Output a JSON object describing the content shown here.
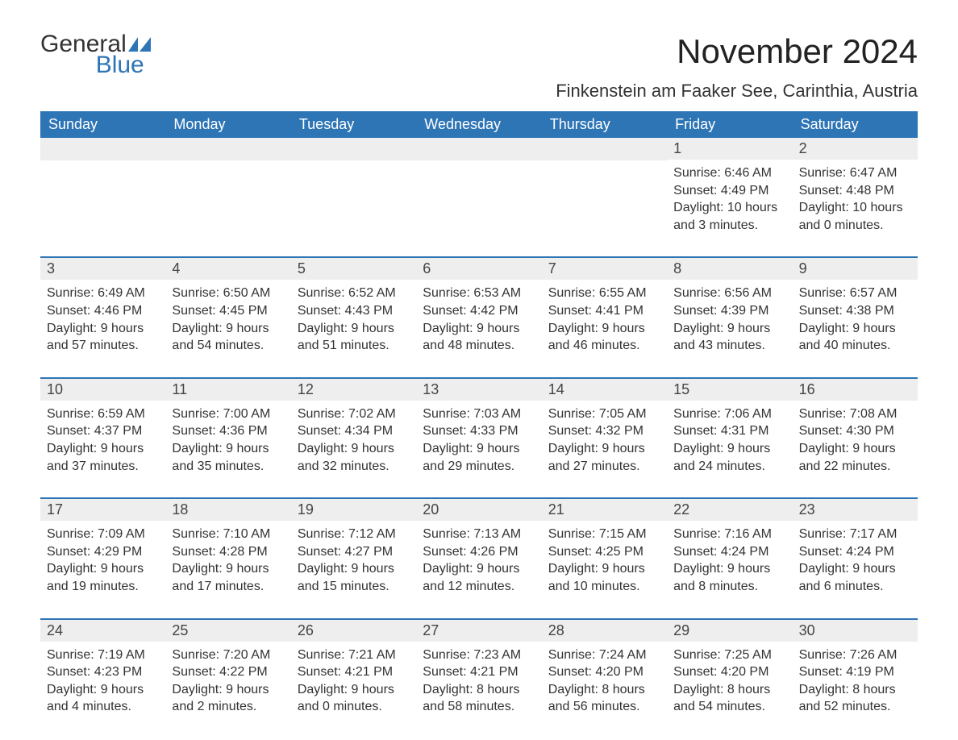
{
  "logo": {
    "text1": "General",
    "text2": "Blue",
    "icon_color": "#2e75b6"
  },
  "title": "November 2024",
  "location": "Finkenstein am Faaker See, Carinthia, Austria",
  "colors": {
    "header_bg": "#2e75b6",
    "header_text": "#ffffff",
    "daynum_bg": "#eeeeee",
    "row_border": "#2e75b6",
    "body_text": "#333333",
    "page_bg": "#ffffff"
  },
  "typography": {
    "title_fontsize": 42,
    "location_fontsize": 22,
    "dow_fontsize": 18,
    "daynum_fontsize": 18,
    "body_fontsize": 16
  },
  "dow": [
    "Sunday",
    "Monday",
    "Tuesday",
    "Wednesday",
    "Thursday",
    "Friday",
    "Saturday"
  ],
  "weeks": [
    [
      null,
      null,
      null,
      null,
      null,
      {
        "d": "1",
        "sr": "6:46 AM",
        "ss": "4:49 PM",
        "dl": "10 hours and 3 minutes."
      },
      {
        "d": "2",
        "sr": "6:47 AM",
        "ss": "4:48 PM",
        "dl": "10 hours and 0 minutes."
      }
    ],
    [
      {
        "d": "3",
        "sr": "6:49 AM",
        "ss": "4:46 PM",
        "dl": "9 hours and 57 minutes."
      },
      {
        "d": "4",
        "sr": "6:50 AM",
        "ss": "4:45 PM",
        "dl": "9 hours and 54 minutes."
      },
      {
        "d": "5",
        "sr": "6:52 AM",
        "ss": "4:43 PM",
        "dl": "9 hours and 51 minutes."
      },
      {
        "d": "6",
        "sr": "6:53 AM",
        "ss": "4:42 PM",
        "dl": "9 hours and 48 minutes."
      },
      {
        "d": "7",
        "sr": "6:55 AM",
        "ss": "4:41 PM",
        "dl": "9 hours and 46 minutes."
      },
      {
        "d": "8",
        "sr": "6:56 AM",
        "ss": "4:39 PM",
        "dl": "9 hours and 43 minutes."
      },
      {
        "d": "9",
        "sr": "6:57 AM",
        "ss": "4:38 PM",
        "dl": "9 hours and 40 minutes."
      }
    ],
    [
      {
        "d": "10",
        "sr": "6:59 AM",
        "ss": "4:37 PM",
        "dl": "9 hours and 37 minutes."
      },
      {
        "d": "11",
        "sr": "7:00 AM",
        "ss": "4:36 PM",
        "dl": "9 hours and 35 minutes."
      },
      {
        "d": "12",
        "sr": "7:02 AM",
        "ss": "4:34 PM",
        "dl": "9 hours and 32 minutes."
      },
      {
        "d": "13",
        "sr": "7:03 AM",
        "ss": "4:33 PM",
        "dl": "9 hours and 29 minutes."
      },
      {
        "d": "14",
        "sr": "7:05 AM",
        "ss": "4:32 PM",
        "dl": "9 hours and 27 minutes."
      },
      {
        "d": "15",
        "sr": "7:06 AM",
        "ss": "4:31 PM",
        "dl": "9 hours and 24 minutes."
      },
      {
        "d": "16",
        "sr": "7:08 AM",
        "ss": "4:30 PM",
        "dl": "9 hours and 22 minutes."
      }
    ],
    [
      {
        "d": "17",
        "sr": "7:09 AM",
        "ss": "4:29 PM",
        "dl": "9 hours and 19 minutes."
      },
      {
        "d": "18",
        "sr": "7:10 AM",
        "ss": "4:28 PM",
        "dl": "9 hours and 17 minutes."
      },
      {
        "d": "19",
        "sr": "7:12 AM",
        "ss": "4:27 PM",
        "dl": "9 hours and 15 minutes."
      },
      {
        "d": "20",
        "sr": "7:13 AM",
        "ss": "4:26 PM",
        "dl": "9 hours and 12 minutes."
      },
      {
        "d": "21",
        "sr": "7:15 AM",
        "ss": "4:25 PM",
        "dl": "9 hours and 10 minutes."
      },
      {
        "d": "22",
        "sr": "7:16 AM",
        "ss": "4:24 PM",
        "dl": "9 hours and 8 minutes."
      },
      {
        "d": "23",
        "sr": "7:17 AM",
        "ss": "4:24 PM",
        "dl": "9 hours and 6 minutes."
      }
    ],
    [
      {
        "d": "24",
        "sr": "7:19 AM",
        "ss": "4:23 PM",
        "dl": "9 hours and 4 minutes."
      },
      {
        "d": "25",
        "sr": "7:20 AM",
        "ss": "4:22 PM",
        "dl": "9 hours and 2 minutes."
      },
      {
        "d": "26",
        "sr": "7:21 AM",
        "ss": "4:21 PM",
        "dl": "9 hours and 0 minutes."
      },
      {
        "d": "27",
        "sr": "7:23 AM",
        "ss": "4:21 PM",
        "dl": "8 hours and 58 minutes."
      },
      {
        "d": "28",
        "sr": "7:24 AM",
        "ss": "4:20 PM",
        "dl": "8 hours and 56 minutes."
      },
      {
        "d": "29",
        "sr": "7:25 AM",
        "ss": "4:20 PM",
        "dl": "8 hours and 54 minutes."
      },
      {
        "d": "30",
        "sr": "7:26 AM",
        "ss": "4:19 PM",
        "dl": "8 hours and 52 minutes."
      }
    ]
  ],
  "labels": {
    "sunrise": "Sunrise: ",
    "sunset": "Sunset: ",
    "daylight": "Daylight: "
  }
}
